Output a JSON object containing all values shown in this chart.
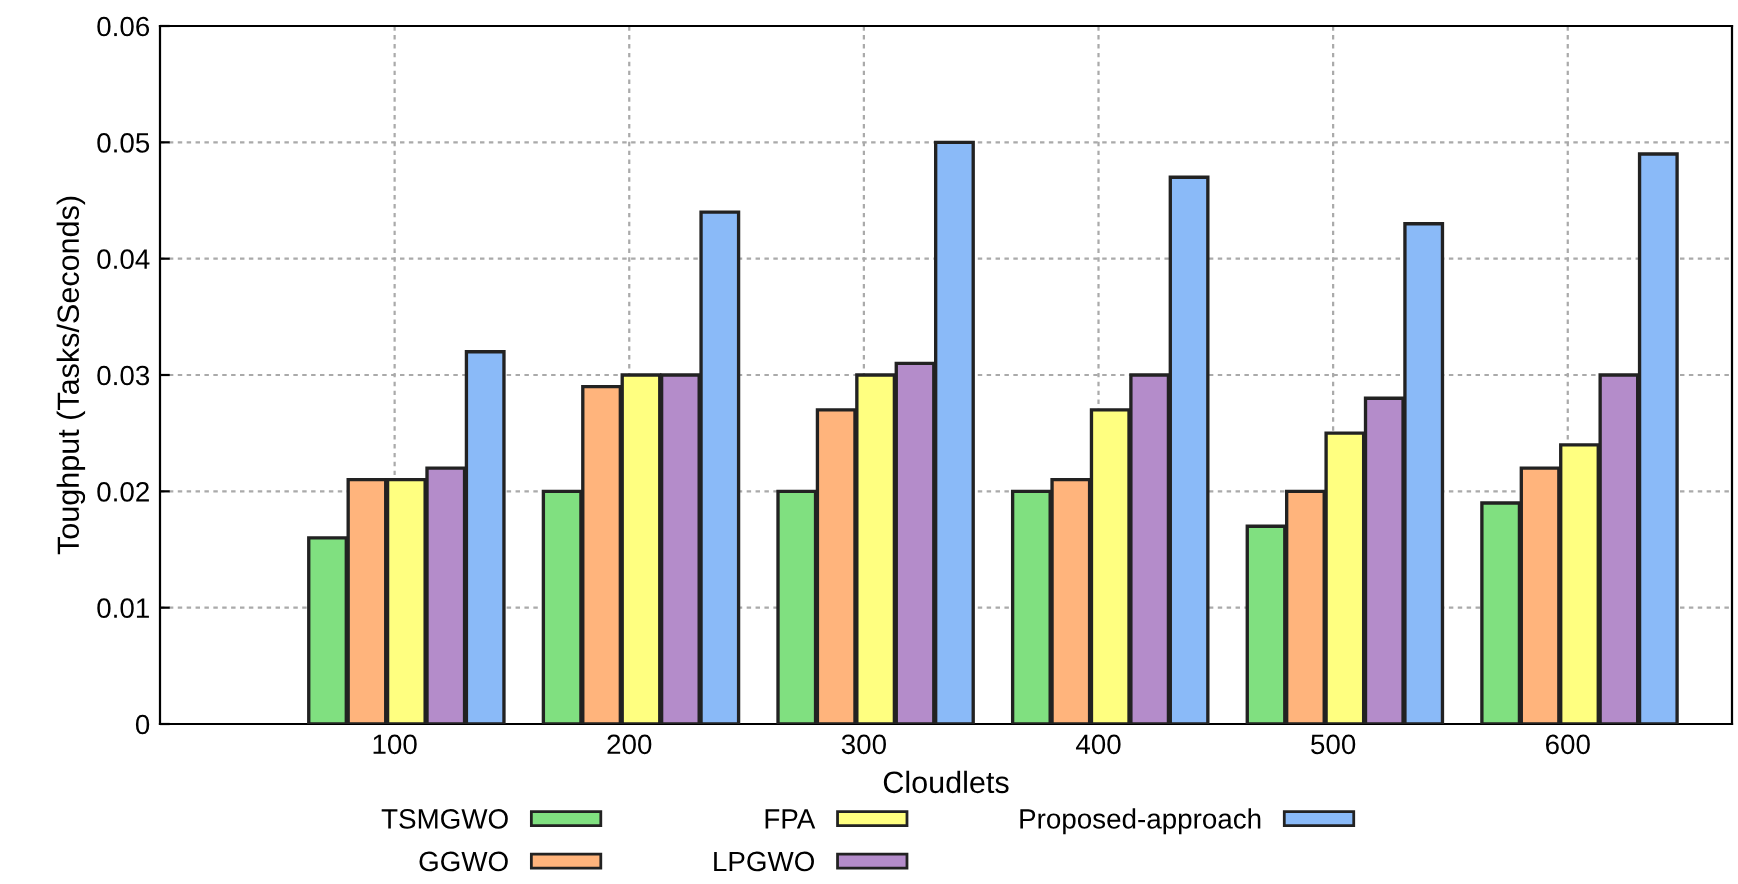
{
  "chart_data": {
    "type": "bar",
    "xlabel": "Cloudlets",
    "ylabel": "Toughput (Tasks/Seconds)",
    "categories": [
      "100",
      "200",
      "300",
      "400",
      "500",
      "600"
    ],
    "series": [
      {
        "name": "TSMGWO",
        "color": "#80e080",
        "values": [
          0.016,
          0.02,
          0.02,
          0.02,
          0.017,
          0.019
        ]
      },
      {
        "name": "GGWO",
        "color": "#ffb47c",
        "values": [
          0.021,
          0.029,
          0.027,
          0.021,
          0.02,
          0.022
        ]
      },
      {
        "name": "FPA",
        "color": "#ffff80",
        "values": [
          0.021,
          0.03,
          0.03,
          0.027,
          0.025,
          0.024
        ]
      },
      {
        "name": "LPGWO",
        "color": "#b48cca",
        "values": [
          0.022,
          0.03,
          0.031,
          0.03,
          0.028,
          0.03
        ]
      },
      {
        "name": "Proposed-approach",
        "color": "#8abaf8",
        "values": [
          0.032,
          0.044,
          0.05,
          0.047,
          0.043,
          0.049
        ]
      }
    ],
    "ylim": [
      0,
      0.06
    ],
    "yticks": [
      0,
      0.01,
      0.02,
      0.03,
      0.04,
      0.05,
      0.06
    ],
    "grid": true,
    "legend": "bottom"
  }
}
